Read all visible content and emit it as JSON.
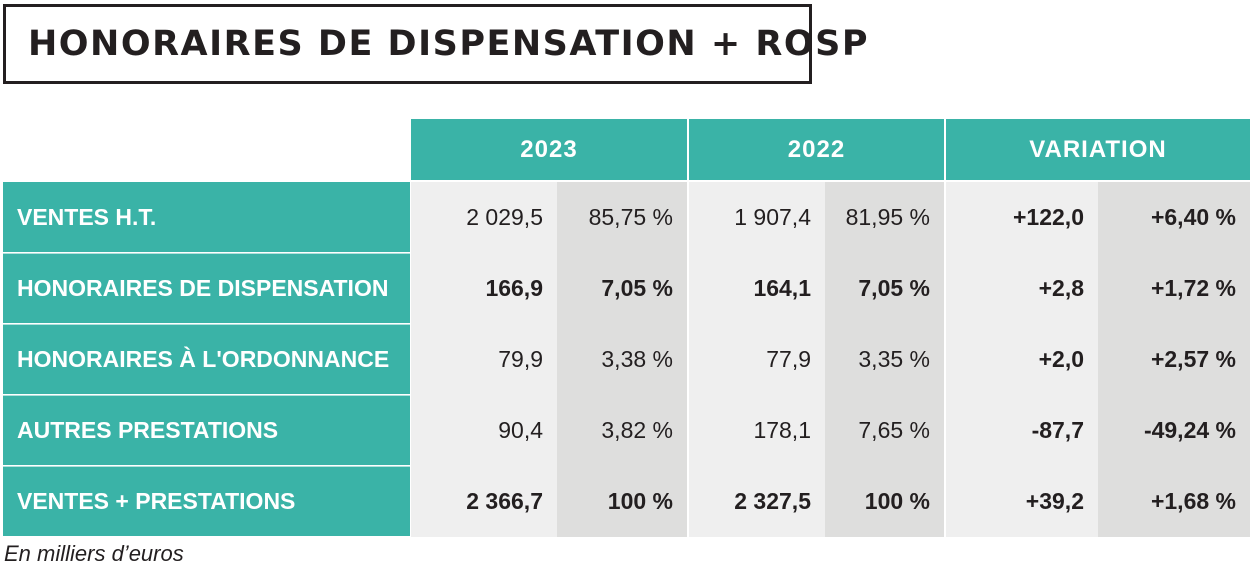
{
  "title": "HONORAIRES DE DISPENSATION + ROSP",
  "columns": [
    "2023",
    "2022",
    "VARIATION"
  ],
  "rows": [
    {
      "label": "VENTES H.T.",
      "v2023": "2 029,5",
      "p2023": "85,75 %",
      "v2022": "1 907,4",
      "p2022": "81,95 %",
      "var_abs": "+122,0",
      "var_pct": "+6,40 %",
      "bold": false
    },
    {
      "label": "HONORAIRES DE DISPENSATION",
      "v2023": "166,9",
      "p2023": "7,05 %",
      "v2022": "164,1",
      "p2022": "7,05 %",
      "var_abs": "+2,8",
      "var_pct": "+1,72 %",
      "bold": true
    },
    {
      "label": "HONORAIRES À L'ORDONNANCE",
      "v2023": "79,9",
      "p2023": "3,38 %",
      "v2022": "77,9",
      "p2022": "3,35 %",
      "var_abs": "+2,0",
      "var_pct": "+2,57 %",
      "bold": false
    },
    {
      "label": "AUTRES PRESTATIONS",
      "v2023": "90,4",
      "p2023": "3,82 %",
      "v2022": "178,1",
      "p2022": "7,65 %",
      "var_abs": "-87,7",
      "var_pct": "-49,24 %",
      "bold": false
    },
    {
      "label": "VENTES + PRESTATIONS",
      "v2023": "2 366,7",
      "p2023": "100 %",
      "v2022": "2 327,5",
      "p2022": "100 %",
      "var_abs": "+39,2",
      "var_pct": "+1,68 %",
      "bold": true
    }
  ],
  "footnote": "En milliers d’euros",
  "colors": {
    "teal": "#3ab3a7",
    "light_gray": "#efefef",
    "dark_gray": "#dededd",
    "text": "#231f20"
  }
}
